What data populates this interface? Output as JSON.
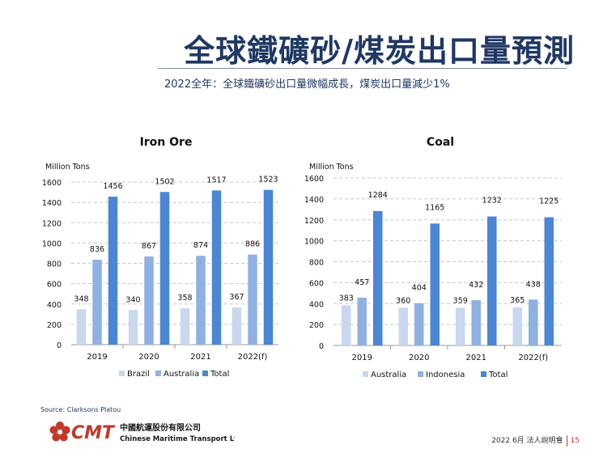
{
  "header": {
    "title": "全球鐵礦砂/煤炭出口量預測",
    "subtitle": "2022全年：全球鐵礦砂出口量微幅成長，煤炭出口量減少1%"
  },
  "colors": {
    "light": "#c9d8ee",
    "mid": "#8fb1e1",
    "dark": "#4a86d4",
    "grid": "#c8c8c8",
    "title": "#1f3864"
  },
  "chart_data": [
    {
      "type": "bar",
      "title": "Iron Ore",
      "ylabel": "Million Tons",
      "ylim": [
        0,
        1600
      ],
      "yticks": [
        0,
        200,
        400,
        600,
        800,
        1000,
        1200,
        1400,
        1600
      ],
      "categories": [
        "2019",
        "2020",
        "2021",
        "2022(f)"
      ],
      "series": [
        {
          "name": "Brazil",
          "values": [
            348,
            340,
            358,
            367
          ]
        },
        {
          "name": "Australia",
          "values": [
            836,
            867,
            874,
            886
          ]
        },
        {
          "name": "Total",
          "values": [
            1456,
            1502,
            1517,
            1523
          ]
        }
      ],
      "legend": "bottom",
      "grid": true
    },
    {
      "type": "bar",
      "title": "Coal",
      "ylabel": "Million Tons",
      "ylim": [
        0,
        1600
      ],
      "yticks": [
        0,
        200,
        400,
        600,
        800,
        1000,
        1200,
        1400,
        1600
      ],
      "categories": [
        "2019",
        "2020",
        "2021",
        "2022(f)"
      ],
      "series": [
        {
          "name": "Australia",
          "values": [
            383,
            360,
            359,
            365
          ]
        },
        {
          "name": "Indonesia",
          "values": [
            457,
            404,
            432,
            438
          ]
        },
        {
          "name": "Total",
          "values": [
            1284,
            1165,
            1232,
            1225
          ]
        }
      ],
      "legend": "bottom",
      "grid": true
    }
  ],
  "footer": {
    "source": "Source: Clarksons Platou",
    "company_cn": "中國航運股份有限公司",
    "company_en": "Chinese Maritime Transport Ltd.",
    "company_abbr": "CMT",
    "event": "2022  6月 法人說明會",
    "page": "15"
  }
}
